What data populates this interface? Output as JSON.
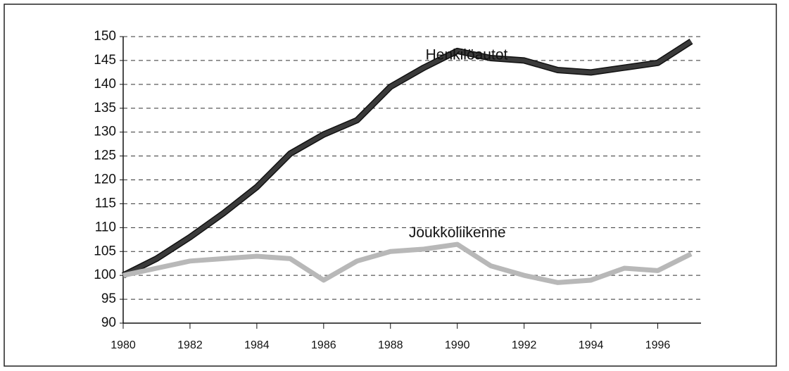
{
  "chart_data": {
    "type": "line",
    "x": [
      1980,
      1981,
      1982,
      1983,
      1984,
      1985,
      1986,
      1987,
      1988,
      1989,
      1990,
      1991,
      1992,
      1993,
      1994,
      1995,
      1996,
      1997
    ],
    "series": [
      {
        "name": "Henkilöautot",
        "color": "#3a3a3a",
        "values": [
          100,
          103.5,
          108,
          113,
          118.5,
          125.5,
          129.5,
          132.5,
          139.5,
          143.5,
          147,
          145.5,
          145,
          143,
          142.5,
          143.5,
          144.5,
          149
        ]
      },
      {
        "name": "Joukkoliikenne",
        "color": "#b8b8b8",
        "values": [
          100,
          101.5,
          103,
          103.5,
          104,
          103.5,
          99,
          103,
          105,
          105.5,
          106.5,
          102,
          100,
          98.5,
          99,
          101.5,
          101,
          104.5
        ]
      }
    ],
    "xlim": [
      1980,
      1997
    ],
    "xticks": [
      1980,
      1982,
      1984,
      1986,
      1988,
      1990,
      1992,
      1994,
      1996
    ],
    "ylim": [
      90,
      150
    ],
    "yticks": [
      90,
      95,
      100,
      105,
      110,
      115,
      120,
      125,
      130,
      135,
      140,
      145,
      150
    ],
    "grid": true
  }
}
